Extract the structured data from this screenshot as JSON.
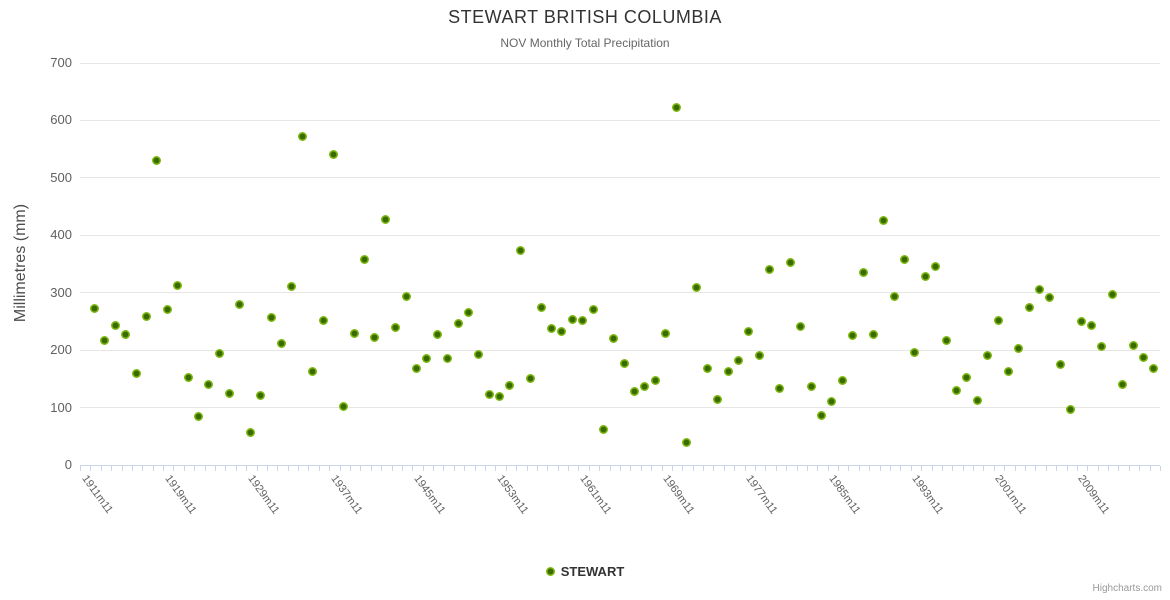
{
  "credits_label": "Highcharts.com",
  "chart_data": {
    "type": "scatter",
    "title": "STEWART BRITISH COLUMBIA",
    "subtitle": "NOV Monthly Total Precipitation",
    "xlabel": "",
    "ylabel": "Millimetres (mm)",
    "ylim": [
      0,
      700
    ],
    "yticks": [
      0,
      100,
      200,
      300,
      400,
      500,
      600,
      700
    ],
    "grid": "horizontal-only",
    "legend_position": "bottom-center",
    "x_axis_type": "category",
    "n_categories": 104,
    "x_tick_labels": [
      "1911m11",
      "1919m11",
      "1929m11",
      "1937m11",
      "1945m11",
      "1953m11",
      "1961m11",
      "1969m11",
      "1977m11",
      "1985m11",
      "1993m11",
      "2001m11",
      "2009m11"
    ],
    "x_tick_category_indices": [
      0,
      8,
      16,
      24,
      32,
      40,
      48,
      56,
      64,
      72,
      80,
      88,
      96
    ],
    "series": [
      {
        "name": "STEWART",
        "color": "#7cb80e",
        "marker_center_color": "#3a6b00",
        "points": [
          [
            0,
            273
          ],
          [
            1,
            216
          ],
          [
            2,
            243
          ],
          [
            3,
            228
          ],
          [
            4,
            160
          ],
          [
            5,
            258
          ],
          [
            6,
            531
          ],
          [
            7,
            270
          ],
          [
            8,
            312
          ],
          [
            9,
            152
          ],
          [
            10,
            85
          ],
          [
            11,
            141
          ],
          [
            12,
            194
          ],
          [
            13,
            124
          ],
          [
            14,
            279
          ],
          [
            15,
            57
          ],
          [
            16,
            121
          ],
          [
            17,
            256
          ],
          [
            18,
            211
          ],
          [
            19,
            311
          ],
          [
            20,
            572
          ],
          [
            21,
            163
          ],
          [
            22,
            251
          ],
          [
            23,
            541
          ],
          [
            24,
            102
          ],
          [
            25,
            229
          ],
          [
            26,
            357
          ],
          [
            27,
            222
          ],
          [
            28,
            428
          ],
          [
            29,
            239
          ],
          [
            30,
            294
          ],
          [
            31,
            168
          ],
          [
            32,
            185
          ],
          [
            33,
            227
          ],
          [
            34,
            185
          ],
          [
            35,
            246
          ],
          [
            36,
            266
          ],
          [
            37,
            193
          ],
          [
            38,
            123
          ],
          [
            39,
            120
          ],
          [
            40,
            138
          ],
          [
            41,
            373
          ],
          [
            42,
            150
          ],
          [
            43,
            275
          ],
          [
            44,
            238
          ],
          [
            45,
            233
          ],
          [
            46,
            253
          ],
          [
            47,
            251
          ],
          [
            48,
            270
          ],
          [
            49,
            61
          ],
          [
            50,
            221
          ],
          [
            51,
            177
          ],
          [
            52,
            128
          ],
          [
            53,
            136
          ],
          [
            54,
            148
          ],
          [
            55,
            229
          ],
          [
            56,
            622
          ],
          [
            57,
            39
          ],
          [
            58,
            309
          ],
          [
            59,
            168
          ],
          [
            60,
            114
          ],
          [
            61,
            162
          ],
          [
            62,
            182
          ],
          [
            63,
            232
          ],
          [
            64,
            190
          ],
          [
            65,
            341
          ],
          [
            66,
            134
          ],
          [
            67,
            352
          ],
          [
            68,
            242
          ],
          [
            69,
            136
          ],
          [
            70,
            87
          ],
          [
            71,
            110
          ],
          [
            72,
            148
          ],
          [
            73,
            226
          ],
          [
            74,
            336
          ],
          [
            75,
            228
          ],
          [
            76,
            426
          ],
          [
            77,
            294
          ],
          [
            78,
            357
          ],
          [
            79,
            196
          ],
          [
            80,
            328
          ],
          [
            81,
            346
          ],
          [
            82,
            217
          ],
          [
            83,
            129
          ],
          [
            84,
            153
          ],
          [
            85,
            113
          ],
          [
            86,
            190
          ],
          [
            87,
            252
          ],
          [
            88,
            162
          ],
          [
            89,
            203
          ],
          [
            90,
            275
          ],
          [
            91,
            305
          ],
          [
            92,
            292
          ],
          [
            93,
            175
          ],
          [
            94,
            96
          ],
          [
            95,
            250
          ],
          [
            96,
            243
          ],
          [
            97,
            207
          ],
          [
            98,
            297
          ],
          [
            99,
            140
          ],
          [
            100,
            208
          ],
          [
            101,
            187
          ],
          [
            102,
            168
          ]
        ]
      }
    ]
  }
}
